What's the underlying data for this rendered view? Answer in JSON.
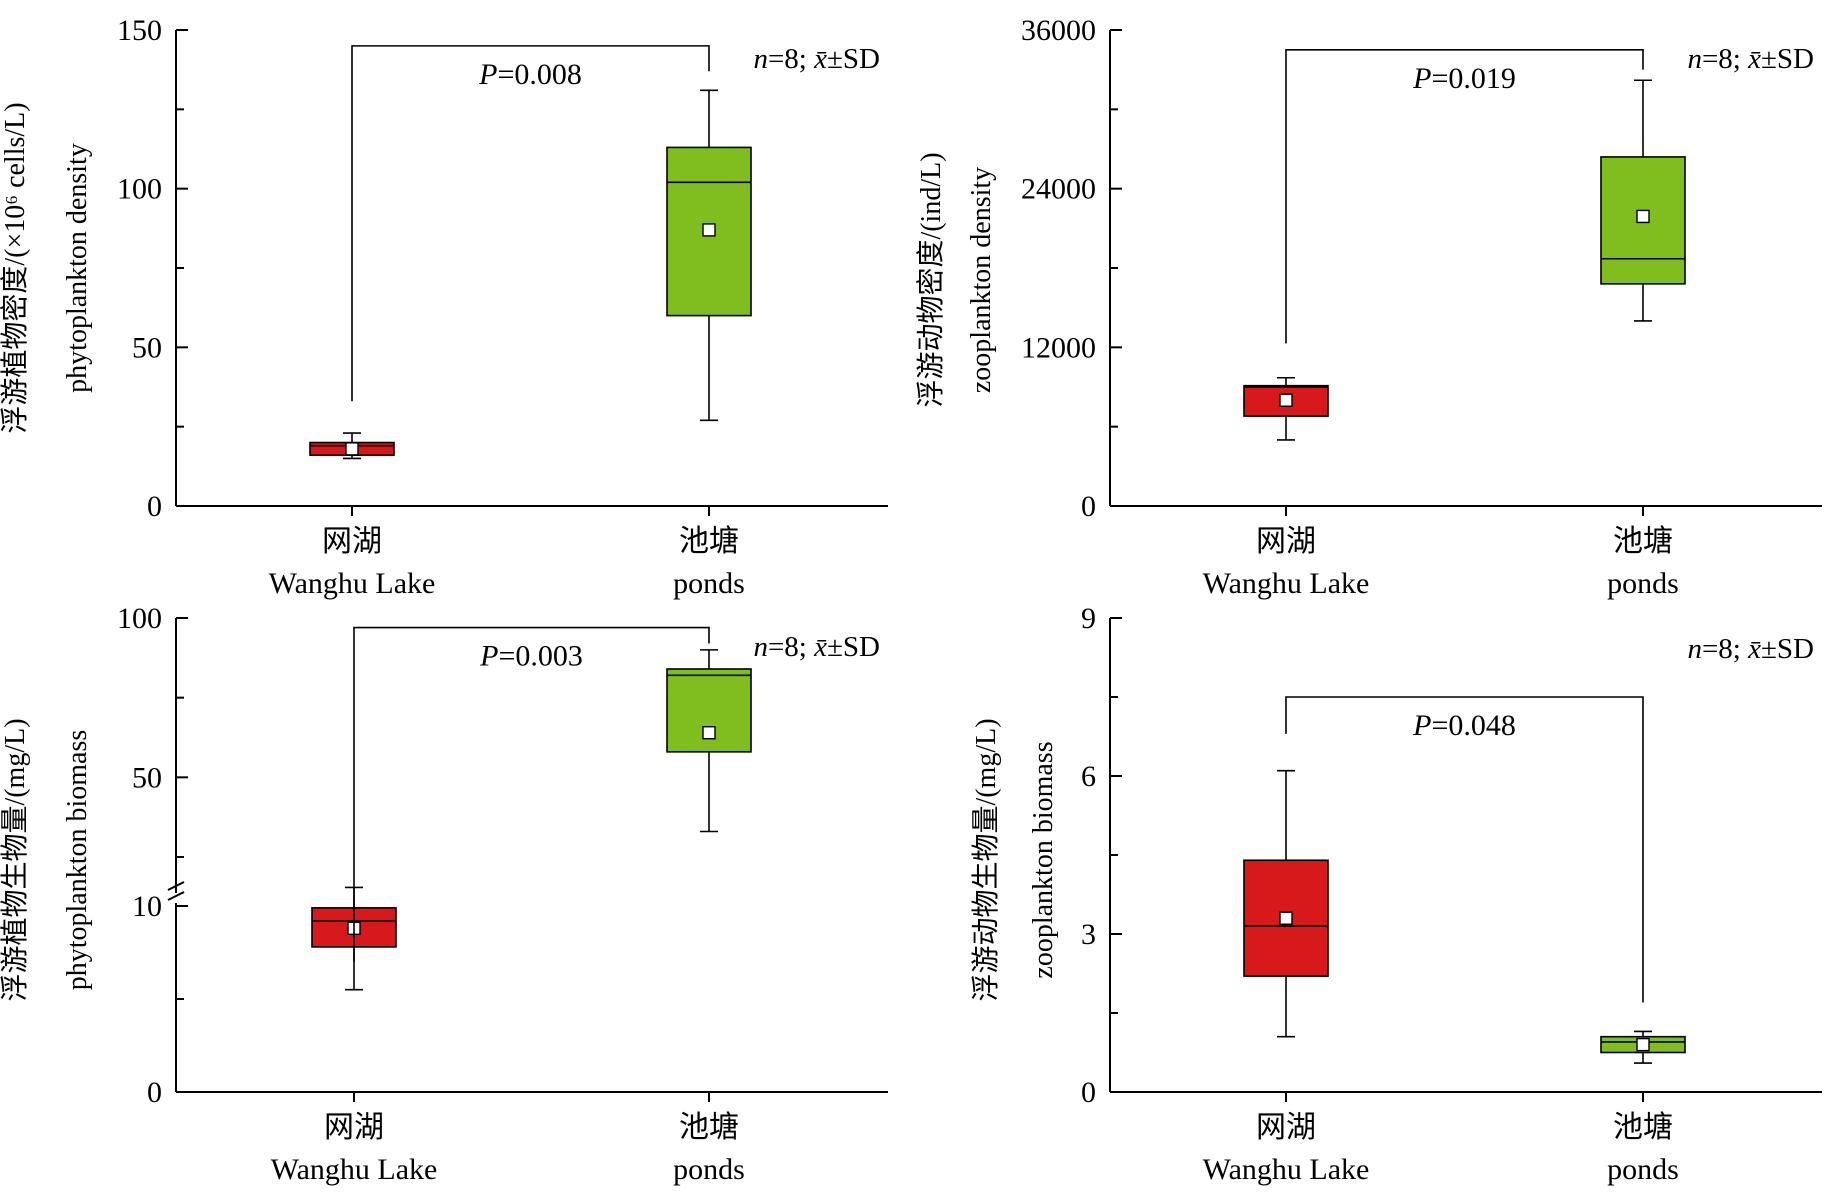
{
  "charts": [
    {
      "id": "phyto-density",
      "chart_data": {
        "type": "box",
        "title": "",
        "ylabel_cn": "浮游植物密度/(×10⁶ cells/L)",
        "ylabel_en": "phytoplankton density",
        "xlabel": "",
        "ylim": [
          0,
          150
        ],
        "yticks": [
          0,
          50,
          100,
          150
        ],
        "minor_step": 25,
        "categories": [
          {
            "cn": "网湖",
            "en": "Wanghu Lake"
          },
          {
            "cn": "池塘",
            "en": "ponds"
          }
        ],
        "boxes": [
          {
            "whisker_low": 15,
            "q1": 16,
            "median": 19,
            "q3": 20,
            "whisker_high": 23,
            "mean": 18,
            "color": "#d7191c"
          },
          {
            "whisker_low": 27,
            "q1": 60,
            "median": 102,
            "q3": 113,
            "whisker_high": 131,
            "mean": 87,
            "color": "#7fbe1e"
          }
        ],
        "annotation": "n=8; x̄±SD",
        "p_label": "P=0.008",
        "bracket_top": 145,
        "bracket_left_end": 33,
        "bracket_right_end": 137
      }
    },
    {
      "id": "zoo-density",
      "chart_data": {
        "type": "box",
        "title": "",
        "ylabel_cn": "浮游动物密度/(ind/L)",
        "ylabel_en": "zooplankton density",
        "xlabel": "",
        "ylim": [
          0,
          36000
        ],
        "yticks": [
          0,
          12000,
          24000,
          36000
        ],
        "minor_step": 6000,
        "categories": [
          {
            "cn": "网湖",
            "en": "Wanghu Lake"
          },
          {
            "cn": "池塘",
            "en": "ponds"
          }
        ],
        "boxes": [
          {
            "whisker_low": 5000,
            "q1": 6800,
            "median": 9000,
            "q3": 9100,
            "whisker_high": 9700,
            "mean": 8000,
            "color": "#d7191c"
          },
          {
            "whisker_low": 14000,
            "q1": 16800,
            "median": 18700,
            "q3": 26400,
            "whisker_high": 32200,
            "mean": 21900,
            "color": "#7fbe1e"
          }
        ],
        "annotation": "n=8; x̄±SD",
        "p_label": "P=0.019",
        "bracket_top": 34500,
        "bracket_left_end": 12300,
        "bracket_right_end": 33000
      }
    },
    {
      "id": "phyto-biomass",
      "chart_data": {
        "type": "box",
        "title": "",
        "ylabel_cn": "浮游植物生物量/(mg/L)",
        "ylabel_en": "phytoplankton biomass",
        "xlabel": "",
        "ylim": [
          0,
          100
        ],
        "y_axis_break": [
          12,
          25
        ],
        "yticks": [
          0,
          10,
          50,
          100
        ],
        "minor_ticks": [
          5,
          25,
          75
        ],
        "categories": [
          {
            "cn": "网湖",
            "en": "Wanghu Lake"
          },
          {
            "cn": "池塘",
            "en": "ponds"
          }
        ],
        "boxes": [
          {
            "whisker_low": 5.5,
            "q1": 7.8,
            "median": 9.2,
            "q3": 9.9,
            "whisker_high": 11,
            "mean": 8.8,
            "color": "#d7191c"
          },
          {
            "whisker_low": 33,
            "q1": 58,
            "median": 82,
            "q3": 84,
            "whisker_high": 90,
            "mean": 64,
            "color": "#7fbe1e"
          }
        ],
        "annotation": "n=8; x̄±SD",
        "p_label": "P=0.003",
        "bracket_top": 97,
        "bracket_left_end": 7,
        "bracket_right_end": 92
      }
    },
    {
      "id": "zoo-biomass",
      "chart_data": {
        "type": "box",
        "title": "",
        "ylabel_cn": "浮游动物生物量/(mg/L)",
        "ylabel_en": "zooplankton biomass",
        "xlabel": "",
        "ylim": [
          0,
          9
        ],
        "yticks": [
          0,
          3,
          6,
          9
        ],
        "minor_step": 1.5,
        "categories": [
          {
            "cn": "网湖",
            "en": "Wanghu Lake"
          },
          {
            "cn": "池塘",
            "en": "ponds"
          }
        ],
        "boxes": [
          {
            "whisker_low": 1.05,
            "q1": 2.2,
            "median": 3.15,
            "q3": 4.4,
            "whisker_high": 6.1,
            "mean": 3.3,
            "color": "#d7191c"
          },
          {
            "whisker_low": 0.55,
            "q1": 0.75,
            "median": 0.95,
            "q3": 1.05,
            "whisker_high": 1.15,
            "mean": 0.9,
            "color": "#7fbe1e"
          }
        ],
        "annotation": "n=8; x̄±SD",
        "p_label": "P=0.048",
        "bracket_top": 7.5,
        "bracket_left_end": 6.8,
        "bracket_right_end": 1.7
      }
    }
  ]
}
